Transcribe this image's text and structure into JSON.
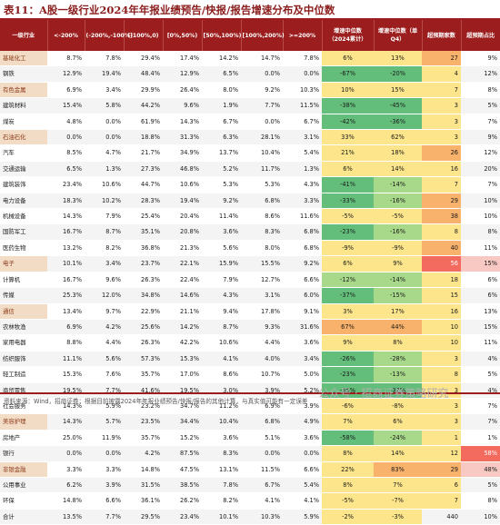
{
  "title": "表11：A股一级行业2024年年报业绩预告/快报/报告增速分布及中位数",
  "headers": [
    "一级行业",
    "<-200%",
    "(-200%,-100%]",
    "(-100%,0)",
    "[0%,50%)",
    "[50%,100%)",
    "[100%,200%)",
    ">=200%",
    "增速中位数（2024累计）",
    "增速中位数（单Q4）",
    "超预期家数",
    "超预期占比"
  ],
  "rows": [
    {
      "name": "基础化工",
      "hl": true,
      "v": [
        "8.7%",
        "7.8%",
        "29.4%",
        "17.4%",
        "14.2%",
        "14.7%",
        "7.8%",
        "6%",
        "13%",
        "27",
        "9%"
      ],
      "c": [
        "y",
        "y",
        "o",
        ""
      ]
    },
    {
      "name": "钢铁",
      "hl": false,
      "v": [
        "12.9%",
        "19.4%",
        "48.4%",
        "12.9%",
        "6.5%",
        "0.0%",
        "0.0%",
        "-67%",
        "-20%",
        "4",
        "12%"
      ],
      "c": [
        "g",
        "g",
        "y",
        ""
      ]
    },
    {
      "name": "有色金属",
      "hl": true,
      "v": [
        "6.9%",
        "3.4%",
        "29.9%",
        "26.4%",
        "8.0%",
        "9.2%",
        "10.3%",
        "10%",
        "15%",
        "7",
        "8%"
      ],
      "c": [
        "y",
        "y",
        "y",
        ""
      ]
    },
    {
      "name": "建筑材料",
      "hl": false,
      "v": [
        "15.4%",
        "5.8%",
        "44.2%",
        "9.6%",
        "1.9%",
        "7.7%",
        "11.5%",
        "-38%",
        "-45%",
        "3",
        "5%"
      ],
      "c": [
        "g",
        "g",
        "y",
        ""
      ]
    },
    {
      "name": "煤炭",
      "hl": false,
      "v": [
        "4.8%",
        "0.0%",
        "61.9%",
        "14.3%",
        "6.7%",
        "0.0%",
        "6.7%",
        "-42%",
        "-36%",
        "3",
        "7%"
      ],
      "c": [
        "g",
        "g",
        "y",
        ""
      ]
    },
    {
      "name": "石油石化",
      "hl": true,
      "v": [
        "0.0%",
        "0.0%",
        "18.8%",
        "31.3%",
        "6.3%",
        "28.1%",
        "3.1%",
        "33%",
        "62%",
        "3",
        "9%"
      ],
      "c": [
        "y",
        "y",
        "y",
        ""
      ]
    },
    {
      "name": "汽车",
      "hl": false,
      "v": [
        "8.5%",
        "4.7%",
        "21.7%",
        "34.9%",
        "13.7%",
        "10.4%",
        "5.4%",
        "21%",
        "18%",
        "26",
        "12%"
      ],
      "c": [
        "y",
        "y",
        "o",
        ""
      ]
    },
    {
      "name": "交通运输",
      "hl": false,
      "v": [
        "6.5%",
        "1.3%",
        "27.3%",
        "46.8%",
        "5.2%",
        "11.7%",
        "1.3%",
        "6%",
        "14%",
        "16",
        "20%"
      ],
      "c": [
        "y",
        "y",
        "y",
        ""
      ]
    },
    {
      "name": "建筑装饰",
      "hl": false,
      "v": [
        "23.4%",
        "10.6%",
        "44.7%",
        "10.6%",
        "5.3%",
        "5.3%",
        "4.3%",
        "-41%",
        "-14%",
        "7",
        "7%"
      ],
      "c": [
        "g",
        "lg",
        "y",
        ""
      ]
    },
    {
      "name": "电力设备",
      "hl": false,
      "v": [
        "18.3%",
        "10.2%",
        "28.3%",
        "19.4%",
        "9.2%",
        "6.8%",
        "3.3%",
        "-33%",
        "-16%",
        "29",
        "10%"
      ],
      "c": [
        "g",
        "lg",
        "o",
        ""
      ]
    },
    {
      "name": "机械设备",
      "hl": false,
      "v": [
        "14.3%",
        "7.9%",
        "25.4%",
        "20.4%",
        "11.4%",
        "8.6%",
        "11.6%",
        "-5%",
        "-5%",
        "38",
        "10%"
      ],
      "c": [
        "y",
        "y",
        "o",
        ""
      ]
    },
    {
      "name": "国防军工",
      "hl": false,
      "v": [
        "16.7%",
        "8.7%",
        "35.1%",
        "20.8%",
        "3.6%",
        "8.3%",
        "6.8%",
        "-23%",
        "-16%",
        "8",
        "8%"
      ],
      "c": [
        "g",
        "lg",
        "y",
        ""
      ]
    },
    {
      "name": "医药生物",
      "hl": false,
      "v": [
        "13.2%",
        "8.2%",
        "36.8%",
        "21.3%",
        "5.6%",
        "8.0%",
        "6.8%",
        "-9%",
        "-9%",
        "40",
        "11%"
      ],
      "c": [
        "y",
        "y",
        "o",
        ""
      ]
    },
    {
      "name": "电子",
      "hl": true,
      "v": [
        "10.1%",
        "3.4%",
        "23.7%",
        "22.1%",
        "15.9%",
        "15.5%",
        "9.2%",
        "6%",
        "9%",
        "56",
        "15%"
      ],
      "c": [
        "y",
        "y",
        "r",
        "pk"
      ]
    },
    {
      "name": "计算机",
      "hl": false,
      "v": [
        "16.7%",
        "9.6%",
        "26.3%",
        "22.4%",
        "7.9%",
        "12.7%",
        "6.6%",
        "-12%",
        "-14%",
        "18",
        "6%"
      ],
      "c": [
        "lg",
        "lg",
        "y",
        ""
      ]
    },
    {
      "name": "传媒",
      "hl": false,
      "v": [
        "25.3%",
        "12.0%",
        "34.8%",
        "14.6%",
        "4.3%",
        "3.1%",
        "6.0%",
        "-37%",
        "-15%",
        "15",
        "6%"
      ],
      "c": [
        "g",
        "lg",
        "y",
        ""
      ]
    },
    {
      "name": "通信",
      "hl": true,
      "v": [
        "13.4%",
        "9.7%",
        "22.9%",
        "21.1%",
        "9.4%",
        "17.8%",
        "9.1%",
        "3%",
        "17%",
        "16",
        "13%"
      ],
      "c": [
        "y",
        "y",
        "y",
        ""
      ]
    },
    {
      "name": "农林牧渔",
      "hl": false,
      "v": [
        "6.9%",
        "4.2%",
        "25.6%",
        "14.2%",
        "8.7%",
        "9.3%",
        "31.6%",
        "67%",
        "44%",
        "10",
        "15%"
      ],
      "c": [
        "o",
        "o",
        "y",
        ""
      ]
    },
    {
      "name": "家用电器",
      "hl": false,
      "v": [
        "8.8%",
        "4.4%",
        "26.3%",
        "42.2%",
        "10.6%",
        "4.4%",
        "3.6%",
        "9%",
        "8%",
        "10",
        "11%"
      ],
      "c": [
        "y",
        "y",
        "y",
        ""
      ]
    },
    {
      "name": "纺织服饰",
      "hl": false,
      "v": [
        "11.1%",
        "5.6%",
        "57.3%",
        "15.3%",
        "4.1%",
        "4.0%",
        "3.4%",
        "-26%",
        "-28%",
        "3",
        "4%"
      ],
      "c": [
        "g",
        "lg",
        "y",
        ""
      ]
    },
    {
      "name": "轻工制造",
      "hl": false,
      "v": [
        "15.3%",
        "7.6%",
        "35.7%",
        "17.0%",
        "8.6%",
        "10.7%",
        "5.0%",
        "-23%",
        "-13%",
        "8",
        "5%"
      ],
      "c": [
        "g",
        "lg",
        "y",
        ""
      ]
    },
    {
      "name": "商贸零售",
      "hl": false,
      "v": [
        "19.5%",
        "7.7%",
        "41.6%",
        "19.5%",
        "3.0%",
        "3.9%",
        "5.2%",
        "-35%",
        "-32%",
        "3",
        "4%"
      ],
      "c": [
        "g",
        "g",
        "y",
        ""
      ]
    },
    {
      "name": "社会服务",
      "hl": false,
      "v": [
        "14.3%",
        "5.9%",
        "23.2%",
        "34.7%",
        "11.2%",
        "6.9%",
        "3.9%",
        "-6%",
        "-8%",
        "3",
        "7%"
      ],
      "c": [
        "y",
        "y",
        "y",
        ""
      ]
    },
    {
      "name": "美容护理",
      "hl": true,
      "v": [
        "14.3%",
        "5.7%",
        "23.5%",
        "34.4%",
        "10.4%",
        "6.8%",
        "4.9%",
        "7%",
        "6%",
        "3",
        "7%"
      ],
      "c": [
        "y",
        "y",
        "y",
        ""
      ]
    },
    {
      "name": "房地产",
      "hl": false,
      "v": [
        "25.0%",
        "11.9%",
        "35.7%",
        "15.2%",
        "3.6%",
        "5.1%",
        "3.6%",
        "-58%",
        "-24%",
        "1",
        "1%"
      ],
      "c": [
        "g",
        "lg",
        "y",
        ""
      ]
    },
    {
      "name": "银行",
      "hl": false,
      "v": [
        "0.0%",
        "0.0%",
        "4.2%",
        "87.5%",
        "8.3%",
        "0.0%",
        "0.0%",
        "8%",
        "14%",
        "12",
        "58%"
      ],
      "c": [
        "y",
        "y",
        "y",
        "r"
      ]
    },
    {
      "name": "非银金融",
      "hl": true,
      "v": [
        "3.3%",
        "3.3%",
        "14.8%",
        "47.5%",
        "13.1%",
        "11.5%",
        "6.6%",
        "22%",
        "83%",
        "29",
        "48%"
      ],
      "c": [
        "y",
        "o",
        "o",
        "pk"
      ]
    },
    {
      "name": "公用事业",
      "hl": false,
      "v": [
        "6.2%",
        "3.9%",
        "31.5%",
        "38.5%",
        "7.8%",
        "6.7%",
        "5.4%",
        "8%",
        "7%",
        "6",
        "5%"
      ],
      "c": [
        "y",
        "y",
        "y",
        ""
      ]
    },
    {
      "name": "环保",
      "hl": false,
      "v": [
        "14.8%",
        "6.6%",
        "36.1%",
        "26.2%",
        "8.2%",
        "4.1%",
        "4.1%",
        "-5%",
        "-7%",
        "7",
        "8%"
      ],
      "c": [
        "y",
        "y",
        "y",
        ""
      ]
    },
    {
      "name": "合计",
      "hl": false,
      "v": [
        "13.5%",
        "7.7%",
        "29.5%",
        "23.4%",
        "10.1%",
        "10.3%",
        "5.9%",
        "-2%",
        "-3%",
        "440",
        "10%"
      ],
      "c": [
        "y",
        "y",
        "",
        ""
      ]
    }
  ],
  "footer": "资料来源：Wind，招商证券；根据目前披露2024年年报业绩预告/快报/报告的其他计算，与真实值可能有一定误差",
  "watermark": "公众号 · 招商证券策略研究",
  "colors": {
    "header": "#9b1d1d",
    "title": "#8b1c1c",
    "green": "#63be7b",
    "yellow": "#fce58a",
    "orange": "#f8b26b",
    "red": "#f36a5f"
  }
}
